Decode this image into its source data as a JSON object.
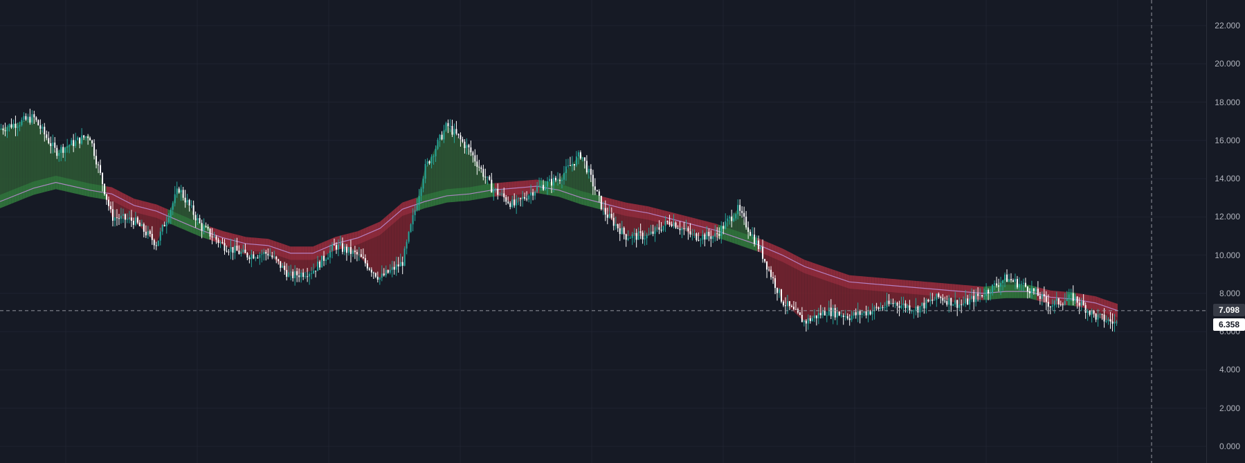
{
  "theme": {
    "background": "#161a25",
    "grid": "#1f2330",
    "bull": "#26a69a",
    "bear": "#ffffff",
    "fill_above": "#2e5a35",
    "fill_below": "#7a2430",
    "band_top": "#8a2a3a",
    "band_bottom": "#2e6e3a",
    "ma_line": "#b98ad0",
    "ma_line_green": "#5fd1a0",
    "crosshair": "#9598a1"
  },
  "price_axis": {
    "ticks": [
      "22.000",
      "20.000",
      "18.000",
      "16.000",
      "14.000",
      "12.000",
      "10.000",
      "8.000",
      "6.000",
      "4.000",
      "2.000",
      "0.000"
    ]
  },
  "crosshair": {
    "price_label": "7.098",
    "price": 7.098
  },
  "last_price": {
    "label": "6.358",
    "price": 6.358
  },
  "chart_data": {
    "type": "line",
    "title": "",
    "xlabel": "",
    "ylabel": "",
    "ylim": [
      -0.9,
      23.2
    ],
    "grid": true,
    "series": [
      {
        "role": "price",
        "x": [
          0,
          3,
          5,
          8,
          10,
          12,
          14,
          16,
          18,
          20,
          22,
          24,
          26,
          28,
          30,
          32,
          34,
          36,
          38,
          40,
          42,
          44,
          46,
          48,
          50,
          52,
          54,
          56,
          58,
          60,
          62,
          64,
          66,
          68,
          70,
          72,
          74,
          76,
          78,
          80,
          82,
          84,
          86,
          88,
          90,
          92,
          94,
          96,
          98,
          100
        ],
        "values": [
          16.6,
          17.2,
          15.4,
          16.3,
          12.0,
          11.8,
          10.6,
          13.5,
          11.5,
          10.5,
          10.0,
          10.1,
          8.9,
          9.2,
          10.5,
          10.0,
          8.8,
          9.6,
          14.5,
          16.8,
          15.5,
          13.5,
          12.6,
          13.5,
          14.0,
          15.3,
          12.3,
          11.0,
          11.0,
          11.8,
          11.0,
          11.0,
          12.4,
          10.3,
          7.6,
          6.5,
          7.1,
          6.8,
          7.1,
          7.5,
          7.2,
          7.8,
          7.4,
          8.0,
          8.8,
          8.3,
          7.4,
          7.8,
          6.8,
          6.4
        ]
      },
      {
        "role": "moving-average",
        "x": [
          0,
          3,
          5,
          8,
          10,
          12,
          14,
          16,
          18,
          20,
          22,
          24,
          26,
          28,
          30,
          32,
          34,
          36,
          38,
          40,
          42,
          44,
          46,
          48,
          50,
          52,
          54,
          56,
          58,
          60,
          62,
          64,
          66,
          68,
          70,
          72,
          74,
          76,
          78,
          80,
          82,
          84,
          86,
          88,
          90,
          92,
          94,
          96,
          98,
          100
        ],
        "values": [
          12.8,
          13.5,
          13.8,
          13.4,
          13.2,
          12.6,
          12.3,
          11.8,
          11.3,
          10.9,
          10.6,
          10.5,
          10.1,
          10.1,
          10.6,
          10.9,
          11.4,
          12.4,
          12.8,
          13.1,
          13.2,
          13.4,
          13.5,
          13.6,
          13.4,
          13.0,
          12.7,
          12.4,
          12.2,
          11.9,
          11.6,
          11.3,
          10.9,
          10.5,
          10.0,
          9.4,
          9.0,
          8.6,
          8.5,
          8.4,
          8.3,
          8.2,
          8.1,
          8.0,
          8.1,
          8.1,
          7.8,
          7.7,
          7.5,
          7.1
        ]
      }
    ]
  }
}
